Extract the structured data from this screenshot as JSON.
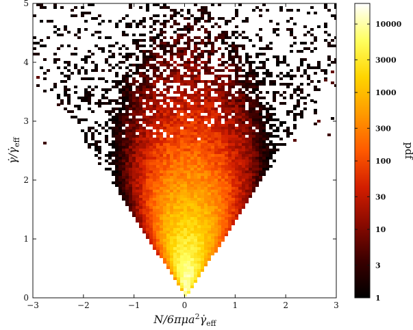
{
  "chart_data": {
    "type": "heatmap",
    "title": "",
    "xlabel": "N/6πμa²γ̇_eff",
    "ylabel": "γ̇/γ̇_eff",
    "xlim": [
      -3,
      3
    ],
    "ylim": [
      0,
      5
    ],
    "x_ticks": [
      -3,
      -2,
      -1,
      0,
      1,
      2,
      3
    ],
    "x_tick_labels": [
      "−3",
      "−2",
      "−1",
      "0",
      "1",
      "2",
      "3"
    ],
    "y_ticks": [
      0,
      1,
      2,
      3,
      4,
      5
    ],
    "y_tick_labels": [
      "0",
      "1",
      "2",
      "3",
      "4",
      "5"
    ],
    "colorbar": {
      "label": "pdf",
      "scale": "log",
      "range": [
        1,
        20000
      ],
      "ticks": [
        1,
        3,
        10,
        30,
        100,
        300,
        1000,
        3000,
        10000
      ],
      "tick_labels": [
        "1",
        "3",
        "10",
        "30",
        "100",
        "300",
        "1000",
        "3000",
        "10000"
      ],
      "colormap": [
        "#000000",
        "#3a0000",
        "#8a0a00",
        "#d21e00",
        "#ff5a00",
        "#ff9a00",
        "#ffd400",
        "#ffff60",
        "#ffffff"
      ]
    },
    "distribution": {
      "shape": "V-shaped wedge opening upward from origin",
      "apex": [
        0,
        0
      ],
      "edge_slope": 1.33,
      "peak_location": [
        0.1,
        0.4
      ],
      "peak_value": 20000,
      "skew": "toward positive x"
    },
    "grid": false,
    "legend": "colorbar-right"
  }
}
